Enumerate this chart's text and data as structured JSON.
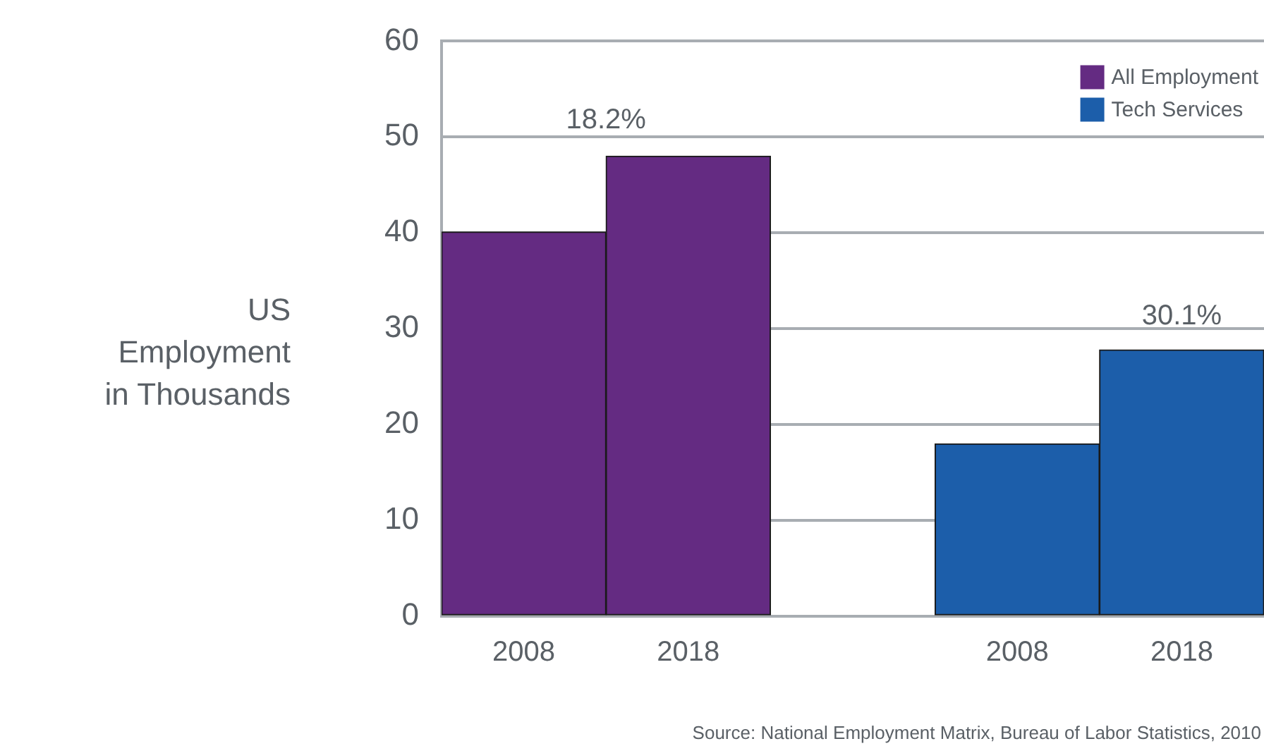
{
  "chart_data": {
    "type": "bar",
    "ylabel": "US Employment in Thousands",
    "categories": [
      "2008",
      "2018",
      null,
      "2008",
      "2018"
    ],
    "series": [
      {
        "name": "All Employment",
        "color": "#642b82",
        "values": [
          40.1,
          48.0,
          null,
          null,
          null
        ]
      },
      {
        "name": "Tech Services",
        "color": "#1c5eaa",
        "values": [
          null,
          null,
          null,
          18.0,
          27.8
        ]
      }
    ],
    "stacked": true,
    "ylim": [
      0,
      60
    ],
    "yticks": [
      0,
      10,
      20,
      30,
      40,
      50,
      60
    ],
    "grid": "y",
    "legend": "top right",
    "annotations": [
      "18.2%",
      "30.1%",
      "Source: National Employment Matrix, Bureau of Labor Statistics, 2010"
    ]
  }
}
